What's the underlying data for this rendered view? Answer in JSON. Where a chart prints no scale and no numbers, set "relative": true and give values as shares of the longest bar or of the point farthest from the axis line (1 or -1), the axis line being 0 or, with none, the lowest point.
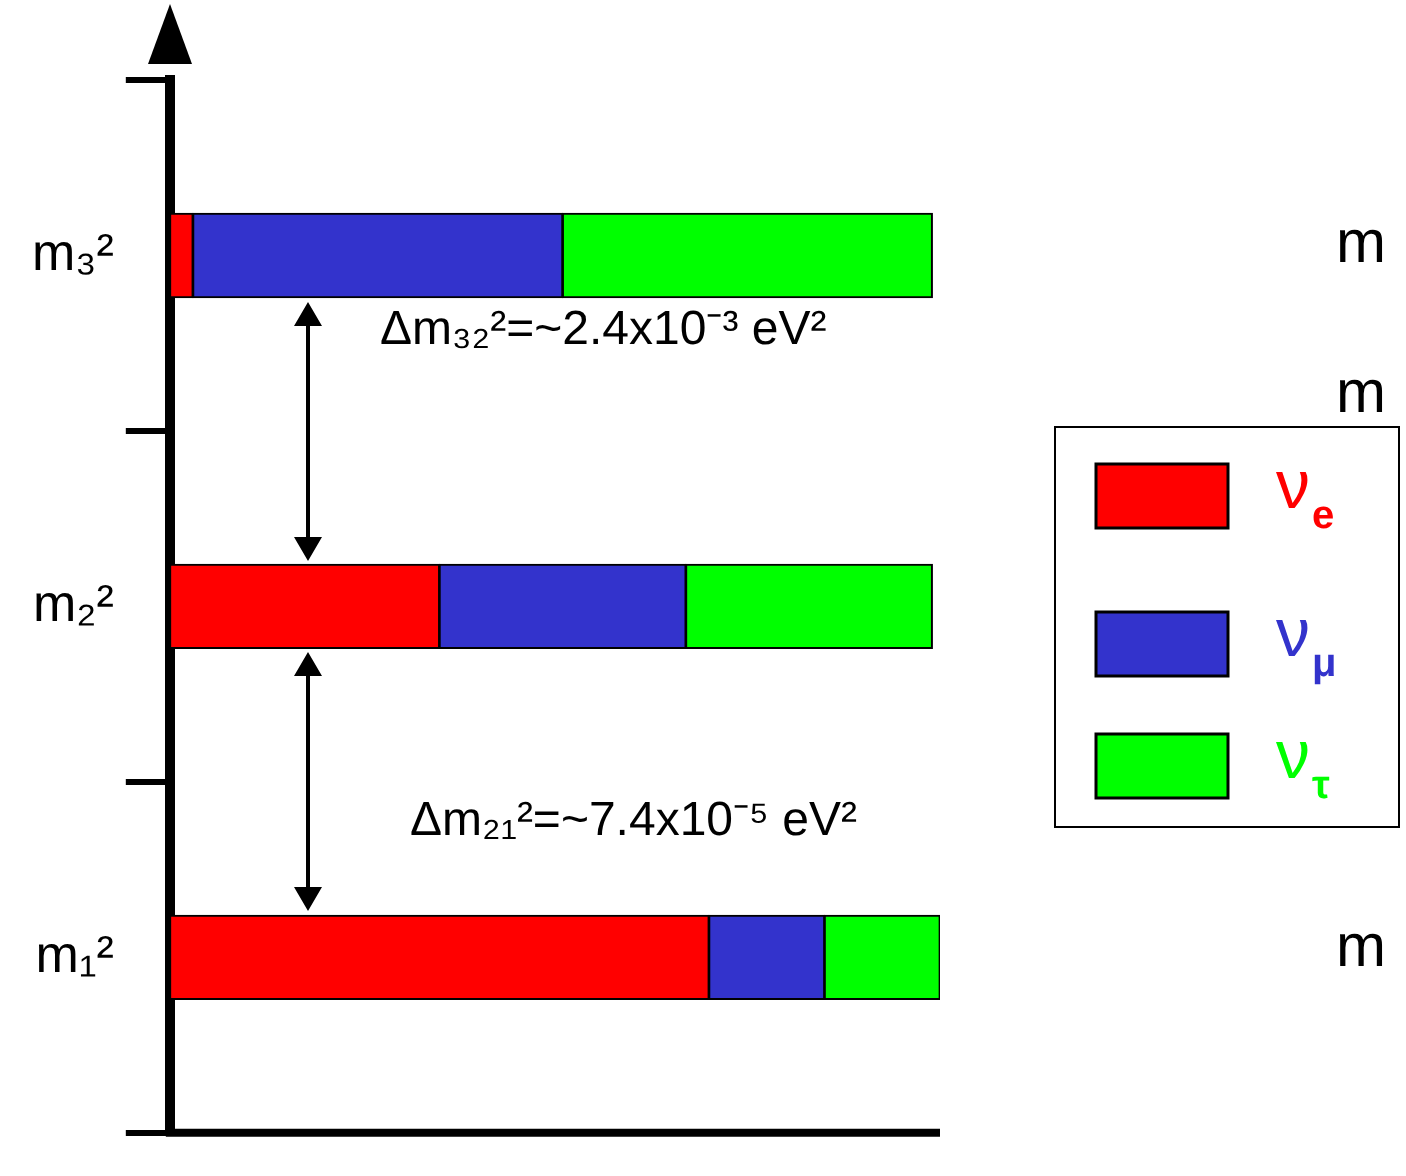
{
  "chart_data": {
    "type": "bar",
    "orientation": "horizontal",
    "stacked": true,
    "relative": true,
    "categories": [
      "m₃²",
      "m₂²",
      "m₁²"
    ],
    "series": [
      {
        "name": "ν$_{e}$",
        "color": "#ff0000",
        "values": [
          0.03,
          0.35,
          0.7
        ]
      },
      {
        "name": "ν$_{μ}$",
        "color": "#3333cc",
        "values": [
          0.48,
          0.32,
          0.15
        ]
      },
      {
        "name": "ν$_{τ}$",
        "color": "#00ff00",
        "values": [
          0.48,
          0.32,
          0.15
        ]
      }
    ],
    "legend": "right",
    "annotations": [
      "Δm₃₂²=~2.4x10⁻³ eV²",
      "Δm₂₁²=~7.4x10⁻⁵ eV²",
      "m",
      "m",
      "m"
    ]
  }
}
